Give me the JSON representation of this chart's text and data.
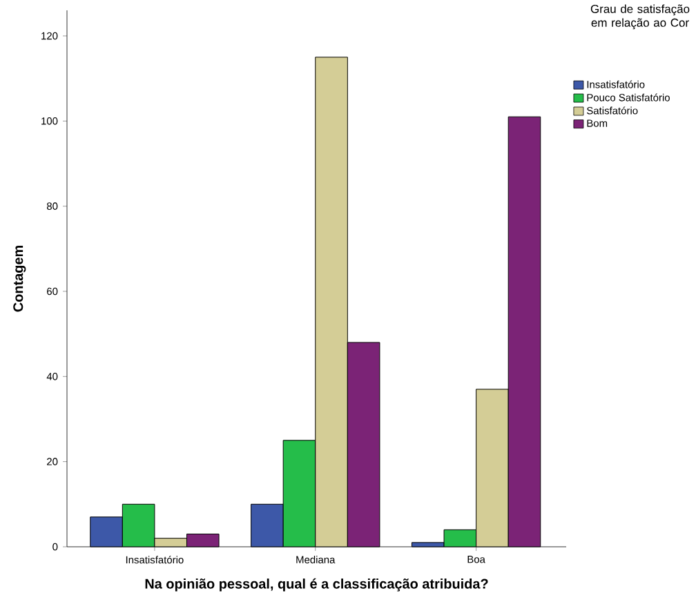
{
  "chart_data": {
    "type": "bar",
    "xlabel": "Na opinião pessoal, qual é a classificação atribuida?",
    "ylabel": "Contagem",
    "legend_title": "Grau de satisfação em relação ao Cor",
    "categories": [
      "Insatisfatório",
      "Mediana",
      "Boa"
    ],
    "series": [
      {
        "name": "Insatisfatório",
        "color": "#3d58a8",
        "values": [
          7,
          10,
          1
        ]
      },
      {
        "name": "Pouco Satisfatório",
        "color": "#25bd4a",
        "values": [
          10,
          25,
          4
        ]
      },
      {
        "name": "Satisfatório",
        "color": "#d4cd96",
        "values": [
          2,
          115,
          37
        ]
      },
      {
        "name": "Bom",
        "color": "#7b2376",
        "values": [
          3,
          48,
          101
        ]
      }
    ],
    "ylim": [
      0,
      126
    ],
    "yticks": [
      0,
      20,
      40,
      60,
      80,
      100,
      120
    ],
    "grid": false,
    "legend": "top right"
  }
}
